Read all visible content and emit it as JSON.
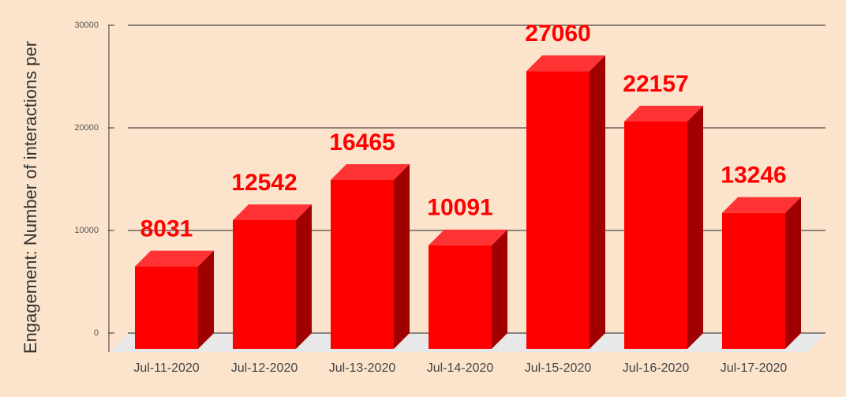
{
  "chart_data": {
    "type": "bar3d",
    "y_label": "Engagement: Number of interactions per",
    "categories": [
      "Jul-11-2020",
      "Jul-12-2020",
      "Jul-13-2020",
      "Jul-14-2020",
      "Jul-15-2020",
      "Jul-16-2020",
      "Jul-17-2020"
    ],
    "values": [
      8031,
      12542,
      16465,
      10091,
      27060,
      22157,
      13246
    ],
    "color": "#ff0000",
    "ylim": [
      0,
      30000
    ],
    "yticks": [
      0,
      10000,
      20000,
      30000
    ],
    "grid": true
  }
}
